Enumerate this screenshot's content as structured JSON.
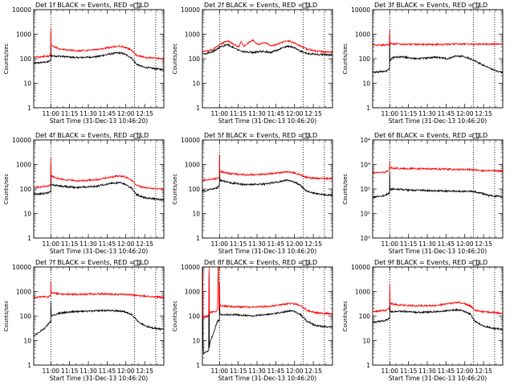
{
  "figure": {
    "xlabel": "Start Time (31-Dec-13 10:46:20)",
    "ylabel": "Counts/sec",
    "x_ticks": [
      "11:00",
      "11:15",
      "11:30",
      "11:45",
      "12:00",
      "12:15"
    ],
    "colors": {
      "events": "#000000",
      "lld": "#ff0000",
      "axes": "#000000"
    }
  },
  "chart_data": [
    {
      "type": "line",
      "title": "Det 1f BLACK = Events, RED = LLD",
      "ylim": [
        1,
        10000
      ],
      "y_scale": "log",
      "y_tick_style": "decimal",
      "y_ticks": [
        "1",
        "10",
        "100",
        "1000",
        "10000"
      ],
      "x_range_min": [
        0,
        104
      ],
      "vlines_min": [
        13.7,
        80.5,
        97.5
      ],
      "series": [
        {
          "color": "#000000",
          "x": [
            0,
            12,
            13.6,
            13.7,
            14,
            22,
            35,
            50,
            62,
            68,
            72,
            78,
            82,
            88,
            96,
            104
          ],
          "y": [
            65,
            75,
            85,
            1200,
            130,
            125,
            110,
            120,
            160,
            175,
            160,
            110,
            60,
            45,
            40,
            35
          ]
        },
        {
          "color": "#ff0000",
          "x": [
            0,
            12,
            13.6,
            13.7,
            14,
            22,
            35,
            50,
            62,
            68,
            72,
            78,
            82,
            88,
            96,
            104
          ],
          "y": [
            115,
            130,
            150,
            1800,
            340,
            240,
            210,
            230,
            300,
            330,
            310,
            230,
            140,
            115,
            105,
            100
          ]
        }
      ]
    },
    {
      "type": "line",
      "title": "Det 2f BLACK = Events, RED = LLD",
      "ylim": [
        1,
        10000
      ],
      "y_scale": "log",
      "y_tick_style": "decimal",
      "y_ticks": [
        "1",
        "10",
        "100",
        "1000",
        "10000"
      ],
      "x_range_min": [
        0,
        104
      ],
      "vlines_min": [
        13.7,
        80.5,
        97.5
      ],
      "series": [
        {
          "color": "#000000",
          "x": [
            0,
            8,
            14,
            20,
            25,
            32,
            40,
            48,
            55,
            62,
            68,
            72,
            78,
            84,
            92,
            104
          ],
          "y": [
            150,
            190,
            290,
            380,
            280,
            200,
            180,
            200,
            180,
            250,
            320,
            300,
            210,
            160,
            150,
            140
          ]
        },
        {
          "color": "#ff0000",
          "x": [
            0,
            8,
            14,
            20,
            25,
            29,
            31,
            33,
            37,
            40,
            45,
            50,
            55,
            62,
            68,
            72,
            78,
            84,
            92,
            104
          ],
          "y": [
            190,
            230,
            380,
            540,
            390,
            300,
            520,
            320,
            450,
            560,
            380,
            470,
            330,
            430,
            540,
            480,
            330,
            240,
            200,
            180
          ]
        }
      ]
    },
    {
      "type": "line",
      "title": "Det 3f BLACK = Events, RED = LLD",
      "ylim": [
        1,
        10000
      ],
      "y_scale": "log",
      "y_tick_style": "decimal",
      "y_ticks": [
        "1",
        "10",
        "100",
        "1000",
        "10000"
      ],
      "x_range_min": [
        0,
        104
      ],
      "vlines_min": [
        13.7,
        80.5,
        97.5
      ],
      "series": [
        {
          "color": "#000000",
          "x": [
            0,
            10,
            13.5,
            13.6,
            13.8,
            16,
            22,
            35,
            50,
            60,
            66,
            72,
            78,
            84,
            92,
            100,
            104
          ],
          "y": [
            28,
            30,
            40,
            1000,
            80,
            110,
            120,
            100,
            115,
            100,
            125,
            130,
            100,
            70,
            45,
            30,
            28
          ]
        },
        {
          "color": "#ff0000",
          "x": [
            0,
            10,
            13.5,
            13.6,
            13.8,
            16,
            30,
            50,
            70,
            85,
            104
          ],
          "y": [
            370,
            360,
            380,
            1500,
            420,
            400,
            390,
            380,
            400,
            390,
            400
          ]
        }
      ]
    },
    {
      "type": "line",
      "title": "Det 4f BLACK = Events, RED = LLD",
      "ylim": [
        1,
        10000
      ],
      "y_scale": "log",
      "y_tick_style": "decimal",
      "y_ticks": [
        "1",
        "10",
        "100",
        "1000",
        "10000"
      ],
      "x_range_min": [
        0,
        104
      ],
      "vlines_min": [
        13.7,
        80.5,
        97.5
      ],
      "series": [
        {
          "color": "#000000",
          "x": [
            0,
            12,
            13.6,
            13.7,
            14,
            22,
            35,
            50,
            62,
            68,
            72,
            78,
            82,
            88,
            96,
            104
          ],
          "y": [
            60,
            70,
            80,
            1100,
            150,
            130,
            115,
            130,
            170,
            180,
            165,
            110,
            60,
            45,
            40,
            35
          ]
        },
        {
          "color": "#ff0000",
          "x": [
            0,
            12,
            13.6,
            13.7,
            14,
            22,
            35,
            50,
            62,
            68,
            72,
            78,
            82,
            88,
            96,
            104
          ],
          "y": [
            115,
            130,
            160,
            1900,
            330,
            250,
            215,
            235,
            310,
            340,
            320,
            240,
            140,
            115,
            105,
            100
          ]
        }
      ]
    },
    {
      "type": "line",
      "title": "Det 5f BLACK = Events, RED = LLD",
      "ylim": [
        1,
        10000
      ],
      "y_scale": "log",
      "y_tick_style": "decimal",
      "y_ticks": [
        "1",
        "10",
        "100",
        "1000",
        "10000"
      ],
      "x_range_min": [
        0,
        104
      ],
      "vlines_min": [
        13.7,
        80.5,
        97.5
      ],
      "series": [
        {
          "color": "#000000",
          "x": [
            0,
            12,
            13.6,
            13.7,
            14,
            22,
            35,
            50,
            62,
            68,
            72,
            78,
            82,
            88,
            96,
            104
          ],
          "y": [
            80,
            110,
            140,
            2400,
            230,
            180,
            150,
            160,
            200,
            230,
            210,
            150,
            90,
            70,
            60,
            55
          ]
        },
        {
          "color": "#ff0000",
          "x": [
            0,
            12,
            13.6,
            13.7,
            14,
            22,
            35,
            50,
            62,
            68,
            72,
            78,
            82,
            88,
            96,
            104
          ],
          "y": [
            230,
            270,
            300,
            2600,
            520,
            420,
            380,
            400,
            460,
            510,
            480,
            390,
            310,
            280,
            270,
            260
          ]
        }
      ]
    },
    {
      "type": "line",
      "title": "Det 6f BLACK = Events, RED = LLD",
      "ylim": [
        1,
        10000
      ],
      "y_scale": "log",
      "y_tick_style": "power",
      "y_ticks": [
        "10⁰",
        "10¹",
        "10²",
        "10³",
        "10⁴"
      ],
      "x_range_min": [
        0,
        104
      ],
      "vlines_min": [
        13.7,
        80.5,
        97.5
      ],
      "series": [
        {
          "color": "#000000",
          "x": [
            0,
            10,
            13.5,
            13.6,
            13.8,
            16,
            30,
            50,
            70,
            80,
            86,
            92,
            100,
            104
          ],
          "y": [
            45,
            55,
            70,
            500,
            95,
            100,
            90,
            85,
            80,
            80,
            70,
            55,
            50,
            48
          ]
        },
        {
          "color": "#ff0000",
          "x": [
            0,
            10,
            13.5,
            13.6,
            13.8,
            16,
            30,
            50,
            70,
            80,
            88,
            104
          ],
          "y": [
            460,
            480,
            600,
            1400,
            720,
            700,
            680,
            660,
            620,
            620,
            560,
            540
          ]
        }
      ]
    },
    {
      "type": "line",
      "title": "Det 7f BLACK = Events, RED = LLD",
      "ylim": [
        1,
        10000
      ],
      "y_scale": "log",
      "y_tick_style": "decimal",
      "y_ticks": [
        "1",
        "10",
        "100",
        "1000",
        "10000"
      ],
      "x_range_min": [
        0,
        104
      ],
      "vlines_min": [
        13.7,
        80.5,
        97.5
      ],
      "series": [
        {
          "color": "#000000",
          "x": [
            0,
            8,
            12,
            13.6,
            13.7,
            14,
            20,
            30,
            45,
            60,
            70,
            78,
            84,
            92,
            104
          ],
          "y": [
            15,
            30,
            50,
            60,
            400,
            100,
            130,
            150,
            160,
            170,
            160,
            120,
            55,
            35,
            28
          ]
        },
        {
          "color": "#ff0000",
          "x": [
            0,
            12,
            13.6,
            13.7,
            14,
            20,
            35,
            55,
            70,
            80,
            90,
            104
          ],
          "y": [
            580,
            620,
            700,
            2700,
            900,
            800,
            760,
            800,
            760,
            720,
            640,
            580
          ]
        }
      ]
    },
    {
      "type": "line",
      "title": "Det 8f BLACK = Events, RED = LLD",
      "ylim": [
        1,
        10000
      ],
      "y_scale": "log",
      "y_tick_style": "decimal",
      "y_ticks": [
        "1",
        "10",
        "100",
        "1000",
        "10000"
      ],
      "x_range_min": [
        0,
        104
      ],
      "vlines_min": [
        13.7,
        80.5,
        97.5
      ],
      "series": [
        {
          "color": "#000000",
          "x": [
            0,
            0.3,
            0.6,
            1,
            5,
            5.3,
            5.6,
            6,
            10,
            12,
            13.6,
            13.7,
            14,
            16,
            25,
            40,
            55,
            65,
            72,
            78,
            84,
            90,
            96,
            104
          ],
          "y": [
            10000,
            1200,
            6,
            3,
            4,
            6000,
            5,
            8,
            30,
            60,
            70,
            900,
            120,
            110,
            115,
            100,
            120,
            150,
            165,
            120,
            60,
            42,
            38,
            35
          ]
        },
        {
          "color": "#ff0000",
          "x": [
            0,
            0.3,
            0.6,
            1,
            5,
            5.3,
            5.6,
            6,
            10,
            12,
            12.5,
            12.8,
            13.2,
            13.6,
            13.7,
            14,
            16,
            25,
            40,
            55,
            65,
            72,
            78,
            84,
            90,
            96,
            104
          ],
          "y": [
            10000,
            10000,
            80,
            90,
            100,
            10000,
            130,
            140,
            150,
            170,
            10000,
            10000,
            180,
            200,
            2500,
            280,
            260,
            240,
            230,
            250,
            300,
            330,
            280,
            170,
            140,
            130,
            120
          ]
        }
      ]
    },
    {
      "type": "line",
      "title": "Det 9f BLACK = Events, RED = LLD",
      "ylim": [
        1,
        10000
      ],
      "y_scale": "log",
      "y_tick_style": "decimal",
      "y_ticks": [
        "1",
        "10",
        "100",
        "1000",
        "10000"
      ],
      "x_range_min": [
        0,
        104
      ],
      "vlines_min": [
        13.7,
        80.5,
        97.5
      ],
      "series": [
        {
          "color": "#000000",
          "x": [
            0,
            10,
            13.6,
            13.7,
            14,
            22,
            35,
            50,
            62,
            68,
            72,
            78,
            82,
            88,
            96,
            104
          ],
          "y": [
            55,
            65,
            80,
            1000,
            150,
            160,
            140,
            150,
            170,
            180,
            165,
            120,
            60,
            40,
            32,
            28
          ]
        },
        {
          "color": "#ff0000",
          "x": [
            0,
            10,
            13.6,
            13.7,
            14,
            22,
            35,
            50,
            62,
            68,
            72,
            78,
            82,
            88,
            96,
            104
          ],
          "y": [
            150,
            170,
            210,
            2000,
            320,
            280,
            260,
            270,
            330,
            360,
            340,
            260,
            170,
            150,
            140,
            130
          ]
        }
      ]
    }
  ]
}
